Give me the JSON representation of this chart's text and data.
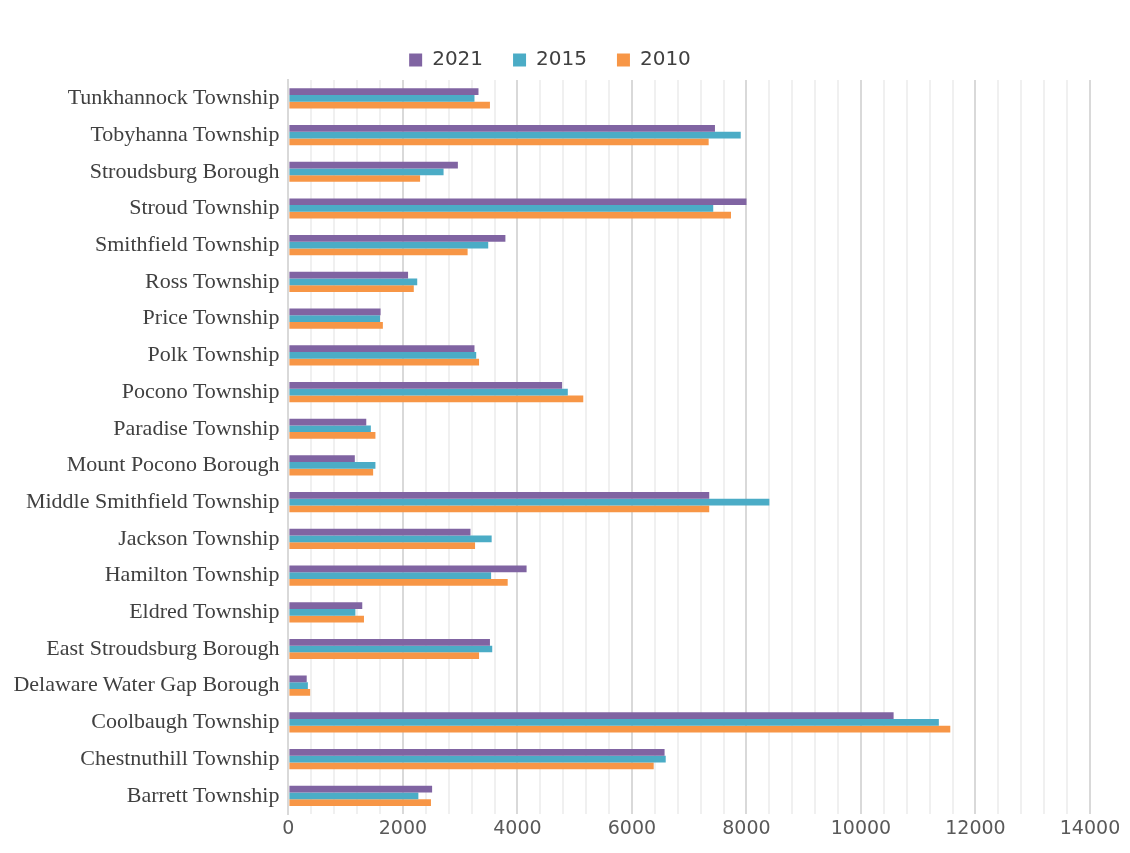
{
  "chart_data": {
    "type": "bar",
    "orientation": "horizontal",
    "legend": "top",
    "grid": "x",
    "categories": [
      "Tunkhannock Township",
      "Tobyhanna Township",
      "Stroudsburg Borough",
      "Stroud Township",
      "Smithfield Township",
      "Ross Township",
      "Price Township",
      "Polk Township",
      "Pocono Township",
      "Paradise Township",
      "Mount Pocono Borough",
      "Middle Smithfield Township",
      "Jackson Township",
      "Hamilton Township",
      "Eldred Township",
      "East Stroudsburg Borough",
      "Delaware Water Gap Borough",
      "Coolbaugh Township",
      "Chestnuthill Township",
      "Barrett Township"
    ],
    "series": [
      {
        "name": "2021",
        "color": "#8064a2",
        "values": [
          3320,
          7450,
          2960,
          8000,
          3790,
          2090,
          1610,
          3250,
          4780,
          1360,
          1160,
          7350,
          3180,
          4160,
          1290,
          3520,
          320,
          10570,
          6570,
          2510
        ]
      },
      {
        "name": "2015",
        "color": "#4bacc6",
        "values": [
          3250,
          7900,
          2710,
          7420,
          3490,
          2250,
          1600,
          3280,
          4880,
          1440,
          1520,
          8400,
          3550,
          3540,
          1170,
          3560,
          340,
          11360,
          6590,
          2270
        ]
      },
      {
        "name": "2010",
        "color": "#f79646",
        "values": [
          3520,
          7340,
          2300,
          7730,
          3130,
          2190,
          1650,
          3330,
          5150,
          1520,
          1480,
          7350,
          3260,
          3830,
          1320,
          3330,
          380,
          11560,
          6380,
          2490
        ]
      }
    ],
    "xlim": [
      0,
      14000
    ],
    "xticks": [
      0,
      {
        "value": 400,
        "label": null
      },
      {
        "value": 800,
        "label": null
      },
      {
        "value": 1200,
        "label": null
      },
      {
        "value": 1600,
        "label": null
      },
      2000,
      {
        "value": 2400,
        "label": null
      },
      {
        "value": 2800,
        "label": null
      },
      {
        "value": 3200,
        "label": null
      },
      {
        "value": 3600,
        "label": null
      },
      4000,
      {
        "value": 4400,
        "label": null
      },
      {
        "value": 4800,
        "label": null
      },
      {
        "value": 5200,
        "label": null
      },
      {
        "value": 5600,
        "label": null
      },
      6000,
      {
        "value": 6400,
        "label": null
      },
      {
        "value": 6800,
        "label": null
      },
      {
        "value": 7200,
        "label": null
      },
      {
        "value": 7600,
        "label": null
      },
      8000,
      {
        "value": 8400,
        "label": null
      },
      {
        "value": 8800,
        "label": null
      },
      {
        "value": 9200,
        "label": null
      },
      {
        "value": 9600,
        "label": null
      },
      10000,
      {
        "value": 10400,
        "label": null
      },
      {
        "value": 10800,
        "label": null
      },
      {
        "value": 11200,
        "label": null
      },
      {
        "value": 11600,
        "label": null
      },
      12000,
      {
        "value": 12400,
        "label": null
      },
      {
        "value": 12800,
        "label": null
      },
      {
        "value": 13200,
        "label": null
      },
      {
        "value": 13600,
        "label": null
      },
      14000
    ]
  }
}
